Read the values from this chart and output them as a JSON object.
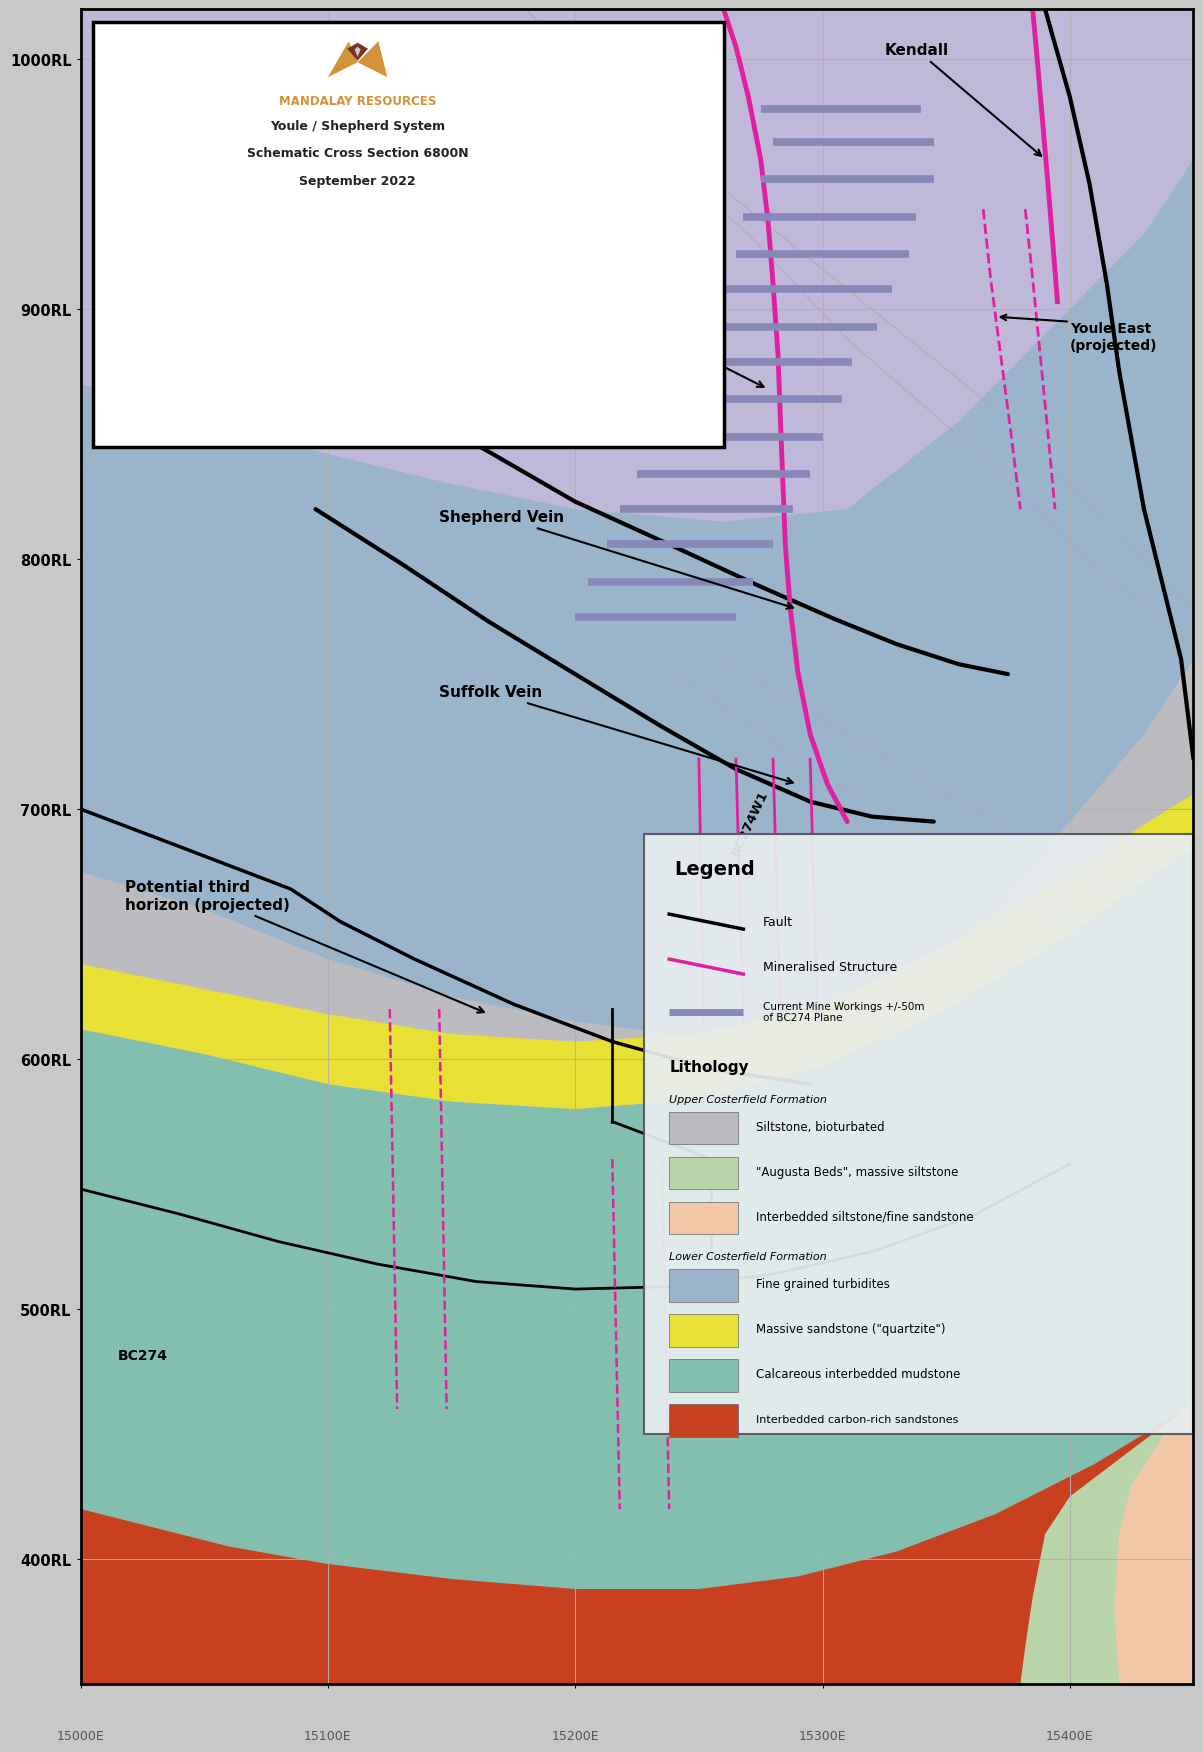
{
  "title_lines": [
    "Youle / Shepherd System",
    "Schematic Cross Section 6800N",
    "September 2022"
  ],
  "company": "MANDALAY RESOURCES",
  "bg_color": "#c8c8c8",
  "xlim": [
    15000,
    15450
  ],
  "ylim": [
    350,
    1020
  ],
  "xticks": [
    15000,
    15100,
    15200,
    15300,
    15400
  ],
  "yticks": [
    400,
    500,
    600,
    700,
    800,
    900,
    1000
  ],
  "ytick_labels": [
    "400RL",
    "500RL",
    "600RL",
    "700RL",
    "800RL",
    "900RL",
    "1000RL"
  ],
  "grid_color": "#b0b0b0",
  "colors": {
    "siltstone": "#bbbbc0",
    "lavender": "#c0b8d8",
    "blue_turbidites": "#9ab4cc",
    "quartzite": "#e8e035",
    "calcareous": "#82bfae",
    "carbon_sandstone": "#c84020",
    "augusta": "#b8d4a8",
    "interbedded_silt": "#f0c8a8",
    "mine_workings": "#8888b8",
    "fault": "#000000",
    "mineralised": "#e020a0"
  },
  "mine_workings_segs": [
    [
      [
        15275,
        15340
      ],
      [
        980,
        980
      ]
    ],
    [
      [
        15280,
        15345
      ],
      [
        967,
        967
      ]
    ],
    [
      [
        15275,
        15345
      ],
      [
        952,
        952
      ]
    ],
    [
      [
        15268,
        15338
      ],
      [
        937,
        937
      ]
    ],
    [
      [
        15265,
        15335
      ],
      [
        922,
        922
      ]
    ],
    [
      [
        15258,
        15328
      ],
      [
        908,
        908
      ]
    ],
    [
      [
        15252,
        15322
      ],
      [
        893,
        893
      ]
    ],
    [
      [
        15245,
        15312
      ],
      [
        879,
        879
      ]
    ],
    [
      [
        15240,
        15308
      ],
      [
        864,
        864
      ]
    ],
    [
      [
        15232,
        15300
      ],
      [
        849,
        849
      ]
    ],
    [
      [
        15225,
        15295
      ],
      [
        834,
        834
      ]
    ],
    [
      [
        15218,
        15288
      ],
      [
        820,
        820
      ]
    ],
    [
      [
        15213,
        15280
      ],
      [
        806,
        806
      ]
    ],
    [
      [
        15205,
        15272
      ],
      [
        791,
        791
      ]
    ],
    [
      [
        15200,
        15265
      ],
      [
        777,
        777
      ]
    ]
  ]
}
